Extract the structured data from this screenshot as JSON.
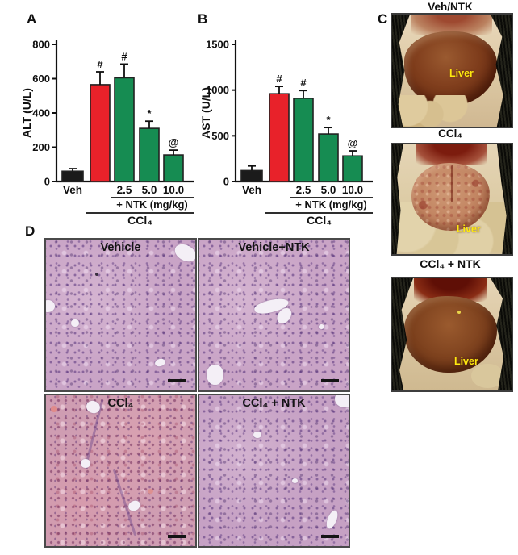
{
  "figure": {
    "background": "#ffffff",
    "colors": {
      "control_bar": "#1b1b1b",
      "ccl4_bar": "#e8222a",
      "ntk_bar": "#168c52",
      "annotation_yellow": "#ffe90f"
    },
    "panels": {
      "A": {
        "label": "A"
      },
      "B": {
        "label": "B"
      },
      "C": {
        "label": "C",
        "photos": [
          {
            "title": "Veh/NTK",
            "annotation": "Liver"
          },
          {
            "title": "CCl₄",
            "annotation": "Liver"
          },
          {
            "title": "CCl₄ + NTK",
            "annotation": "Liver"
          }
        ]
      },
      "D": {
        "label": "D",
        "images": [
          {
            "label": "Vehicle"
          },
          {
            "label": "Vehicle+NTK"
          },
          {
            "label": "CCl₄"
          },
          {
            "label": "CCl₄ + NTK"
          }
        ]
      }
    }
  },
  "chart_data": [
    {
      "type": "bar",
      "panel": "A",
      "ylabel": "ALT (U/L)",
      "ylim": [
        0,
        800
      ],
      "yticks": [
        0,
        200,
        400,
        600,
        800
      ],
      "grid": false,
      "legend": null,
      "categories": [
        "Veh",
        "CCl₄",
        "CCl₄ + NTK 2.5 mg/kg",
        "CCl₄ + NTK 5.0 mg/kg",
        "CCl₄ + NTK 10.0 mg/kg"
      ],
      "values": [
        60,
        565,
        605,
        310,
        155
      ],
      "errors": [
        15,
        75,
        80,
        42,
        28
      ],
      "sig_markers": [
        "",
        "#",
        "#",
        "*",
        "@"
      ],
      "bar_colors": [
        "#1b1b1b",
        "#e8222a",
        "#168c52",
        "#168c52",
        "#168c52"
      ],
      "x_tick_labels": [
        {
          "text": "Veh",
          "bar": 0
        },
        {
          "text": "2.5",
          "bar": 2
        },
        {
          "text": "5.0",
          "bar": 3
        },
        {
          "text": "10.0",
          "bar": 4
        }
      ],
      "group_labels": [
        {
          "text": "+ NTK (mg/kg)",
          "from_bar": 2,
          "to_bar": 4
        },
        {
          "text": "CCl₄",
          "from_bar": 1,
          "to_bar": 4
        }
      ]
    },
    {
      "type": "bar",
      "panel": "B",
      "ylabel": "AST (U/L)",
      "ylim": [
        0,
        1500
      ],
      "yticks": [
        0,
        500,
        1000,
        1500
      ],
      "grid": false,
      "legend": null,
      "categories": [
        "Veh",
        "CCl₄",
        "CCl₄ + NTK 2.5 mg/kg",
        "CCl₄ + NTK 5.0 mg/kg",
        "CCl₄ + NTK 10.0 mg/kg"
      ],
      "values": [
        120,
        960,
        910,
        520,
        280
      ],
      "errors": [
        50,
        80,
        85,
        70,
        55
      ],
      "sig_markers": [
        "",
        "#",
        "#",
        "*",
        "@"
      ],
      "bar_colors": [
        "#1b1b1b",
        "#e8222a",
        "#168c52",
        "#168c52",
        "#168c52"
      ],
      "x_tick_labels": [
        {
          "text": "Veh",
          "bar": 0
        },
        {
          "text": "2.5",
          "bar": 2
        },
        {
          "text": "5.0",
          "bar": 3
        },
        {
          "text": "10.0",
          "bar": 4
        }
      ],
      "group_labels": [
        {
          "text": "+ NTK (mg/kg)",
          "from_bar": 2,
          "to_bar": 4
        },
        {
          "text": "CCl₄",
          "from_bar": 1,
          "to_bar": 4
        }
      ]
    }
  ]
}
